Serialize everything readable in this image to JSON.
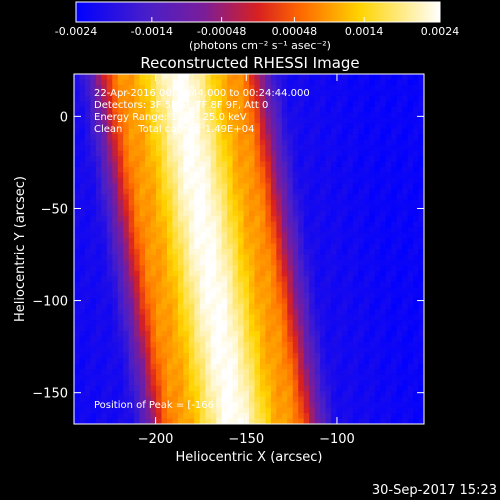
{
  "colorbar": {
    "tick_labels": [
      "-0.0024",
      "-0.0014",
      "-0.00048",
      "0.00048",
      "0.0014",
      "0.0024"
    ],
    "ticks": [
      -0.0024,
      -0.0014,
      -0.00048,
      0.00048,
      0.0014,
      0.0024
    ],
    "range": [
      -0.0024,
      0.0024
    ],
    "unit_label": "(photons cm⁻² s⁻¹ asec⁻²)"
  },
  "title": "Reconstructed RHESSI Image",
  "info_lines": [
    "22-Apr-2016 00:14:44.000 to 00:24:44.000",
    "Detectors: 3F 5F 6F 7F 8F 9F, Att 0",
    "Energy Range: 12.0 - 25.0 keV",
    "Clean     Total counts: 1.49E+04"
  ],
  "peak_label": "Position of Peak = [-166",
  "timestamp": "30-Sep-2017 15:23",
  "chart_data": {
    "type": "heatmap",
    "title": "Reconstructed RHESSI Image",
    "xlabel": "Heliocentric X (arcsec)",
    "ylabel": "Heliocentric Y (arcsec)",
    "xlim": [
      -245,
      -52
    ],
    "ylim": [
      -167,
      23
    ],
    "x_ticks": [
      -200,
      -150,
      -100
    ],
    "x_tick_labels": [
      "−200",
      "−150",
      "−100"
    ],
    "y_ticks": [
      0,
      -50,
      -100,
      -150
    ],
    "y_tick_labels": [
      "0",
      "−50",
      "−100",
      "−150"
    ],
    "colormap": "gamma (blue-purple-red-yellow-white)",
    "value_range": [
      -0.0024,
      0.0024
    ],
    "structure": {
      "orientation": "bands tilted ~15 deg, running from upper-left to lower-right",
      "band_center_x_at_top": -187,
      "band_center_x_at_bottom": -157,
      "bands": [
        {
          "offset_arcsec": 0,
          "value": 0.0024
        },
        {
          "offset_arcsec": 30,
          "value": 0.0009
        },
        {
          "offset_arcsec": -30,
          "value": 0.0009
        },
        {
          "offset_arcsec": 60,
          "value": -0.0021
        },
        {
          "offset_arcsec": -60,
          "value": -0.0021
        }
      ]
    }
  }
}
